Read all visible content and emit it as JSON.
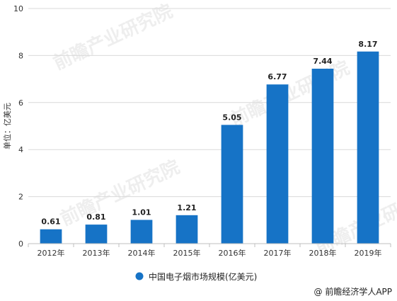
{
  "chart_data": {
    "type": "bar",
    "categories": [
      "2012年",
      "2013年",
      "2014年",
      "2015年",
      "2016年",
      "2017年",
      "2018年",
      "2019年"
    ],
    "values": [
      0.61,
      0.81,
      1.01,
      1.21,
      5.05,
      6.77,
      7.44,
      8.17
    ],
    "value_labels": [
      "0.61",
      "0.81",
      "1.01",
      "1.21",
      "5.05",
      "6.77",
      "7.44",
      "8.17"
    ],
    "ylabel": "单位：亿美元",
    "ylim": [
      0,
      10
    ],
    "yticks": [
      "0",
      "2",
      "4",
      "6",
      "8",
      "10"
    ],
    "grid": true,
    "legend": {
      "entries": [
        "中国电子烟市场规模(亿美元)"
      ],
      "placement": "bottom"
    },
    "colors": {
      "bar": "#1673c6"
    }
  },
  "source": "@ 前瞻经济学人APP",
  "watermark": "前瞻产业研究院"
}
